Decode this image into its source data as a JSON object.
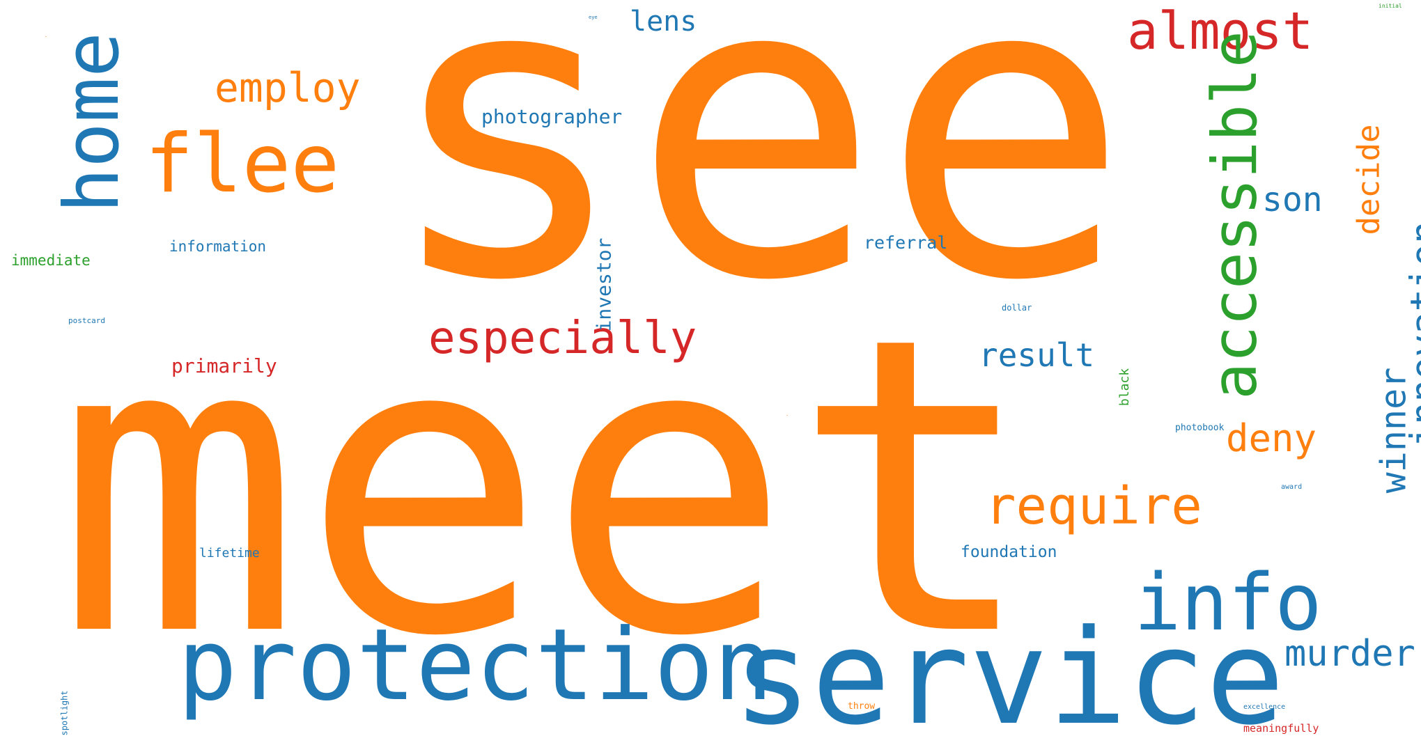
{
  "palette": {
    "orange": "#ff7f0e",
    "blue": "#1f77b4",
    "red": "#d62728",
    "green": "#2ca02c",
    "background": "#ffffff"
  },
  "words": {
    "see": "see",
    "meet": "meet",
    "service": "service",
    "protection": "protection",
    "info": "info",
    "almost": "almost",
    "home": "home",
    "flee": "flee",
    "accessible": "accessible",
    "employ": "employ",
    "especially": "especially",
    "require": "require",
    "innovation": "innovation",
    "winner": "winner",
    "murder": "murder",
    "deny": "deny",
    "decide": "decide",
    "son": "son",
    "result": "result",
    "lens": "lens",
    "photographer": "photographer",
    "investor": "investor",
    "primarily": "primarily",
    "referral": "referral",
    "foundation": "foundation",
    "information": "information",
    "immediate": "immediate",
    "lifetime": "lifetime",
    "black": "black",
    "meaningfully": "meaningfully",
    "throw": "throw",
    "photobook": "photobook",
    "dollar": "dollar",
    "postcard": "postcard",
    "spotlight": "spotlight",
    "excellence": "excellence",
    "award": "award",
    "initial": "initial",
    "eye": "eye"
  }
}
